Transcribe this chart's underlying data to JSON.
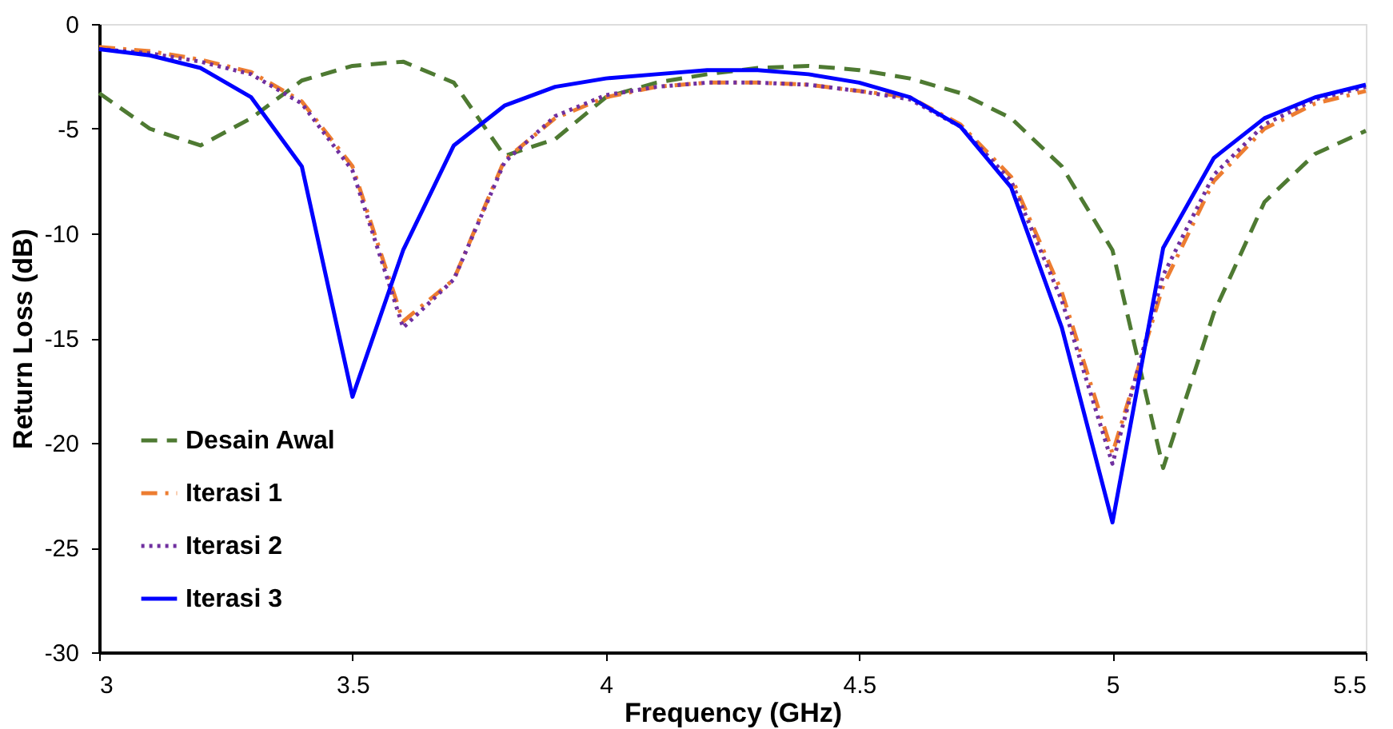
{
  "chart_data": {
    "type": "line",
    "xlabel": "Frequency (GHz)",
    "ylabel": "Return Loss (dB)",
    "x": [
      3.0,
      3.1,
      3.2,
      3.3,
      3.4,
      3.5,
      3.6,
      3.7,
      3.8,
      3.9,
      4.0,
      4.1,
      4.2,
      4.3,
      4.4,
      4.5,
      4.6,
      4.7,
      4.8,
      4.9,
      5.0,
      5.1,
      5.2,
      5.3,
      5.4,
      5.5
    ],
    "xlim": [
      3,
      5.5
    ],
    "xticks": [
      3,
      3.5,
      4,
      4.5,
      5,
      5.5
    ],
    "ylim": [
      -30,
      0
    ],
    "yticks": [
      -30,
      -25,
      -20,
      -15,
      -10,
      -5,
      0
    ],
    "grid": false,
    "legend": "bottom left",
    "marker": "none",
    "series": [
      {
        "name": "Desain Awal",
        "color": "#4e7a32",
        "line_style": "dashed",
        "values": [
          -3.3,
          -5.0,
          -5.8,
          -4.5,
          -2.7,
          -2.0,
          -1.8,
          -2.8,
          -6.3,
          -5.5,
          -3.5,
          -2.8,
          -2.4,
          -2.1,
          -2.0,
          -2.2,
          -2.6,
          -3.3,
          -4.5,
          -6.8,
          -10.8,
          -21.2,
          -13.8,
          -8.5,
          -6.2,
          -5.1
        ]
      },
      {
        "name": "Iterasi 1",
        "color": "#ed7d31",
        "line_style": "dashdot",
        "values": [
          -1.1,
          -1.3,
          -1.7,
          -2.3,
          -3.7,
          -6.8,
          -14.2,
          -12.2,
          -6.5,
          -4.5,
          -3.5,
          -3.0,
          -2.8,
          -2.8,
          -2.9,
          -3.2,
          -3.5,
          -4.8,
          -7.3,
          -12.8,
          -20.5,
          -12.5,
          -7.5,
          -5.0,
          -3.8,
          -3.2
        ]
      },
      {
        "name": "Iterasi 2",
        "color": "#7030a0",
        "line_style": "dotted",
        "values": [
          -1.2,
          -1.4,
          -1.8,
          -2.4,
          -3.8,
          -7.0,
          -14.5,
          -12.2,
          -6.6,
          -4.4,
          -3.4,
          -3.0,
          -2.8,
          -2.8,
          -2.9,
          -3.2,
          -3.6,
          -4.9,
          -7.5,
          -13.2,
          -21.0,
          -12.0,
          -7.2,
          -4.8,
          -3.6,
          -3.0
        ]
      },
      {
        "name": "Iterasi 3",
        "color": "#0000ff",
        "line_style": "solid",
        "values": [
          -1.2,
          -1.5,
          -2.1,
          -3.5,
          -6.8,
          -17.8,
          -10.8,
          -5.8,
          -3.9,
          -3.0,
          -2.6,
          -2.4,
          -2.2,
          -2.2,
          -2.4,
          -2.8,
          -3.5,
          -4.9,
          -7.8,
          -14.5,
          -23.8,
          -10.7,
          -6.4,
          -4.5,
          -3.5,
          -2.9
        ]
      }
    ]
  }
}
